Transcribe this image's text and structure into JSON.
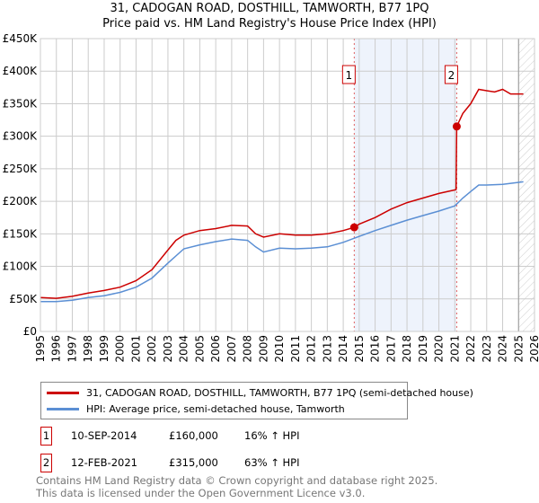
{
  "chart_data": {
    "type": "line",
    "title": "31, CADOGAN ROAD, DOSTHILL, TAMWORTH, B77 1PQ",
    "subtitle": "Price paid vs. HM Land Registry's House Price Index (HPI)",
    "xlim": [
      1995,
      2026
    ],
    "ylim": [
      0,
      450000
    ],
    "x_ticks": [
      "1995",
      "1996",
      "1997",
      "1998",
      "1999",
      "2000",
      "2001",
      "2002",
      "2003",
      "2004",
      "2005",
      "2006",
      "2007",
      "2008",
      "2009",
      "2010",
      "2011",
      "2012",
      "2013",
      "2014",
      "2015",
      "2016",
      "2017",
      "2018",
      "2019",
      "2020",
      "2021",
      "2022",
      "2023",
      "2024",
      "2025",
      "2026"
    ],
    "y_ticks": [
      {
        "v": 0,
        "label": "£0"
      },
      {
        "v": 50000,
        "label": "£50K"
      },
      {
        "v": 100000,
        "label": "£100K"
      },
      {
        "v": 150000,
        "label": "£150K"
      },
      {
        "v": 200000,
        "label": "£200K"
      },
      {
        "v": 250000,
        "label": "£250K"
      },
      {
        "v": 300000,
        "label": "£300K"
      },
      {
        "v": 350000,
        "label": "£350K"
      },
      {
        "v": 400000,
        "label": "£400K"
      },
      {
        "v": 450000,
        "label": "£450K"
      }
    ],
    "grid": true,
    "series": [
      {
        "name": "31, CADOGAN ROAD, DOSTHILL, TAMWORTH, B77 1PQ (semi-detached house)",
        "color": "#cc0000",
        "x": [
          1995,
          1996,
          1997,
          1998,
          1999,
          2000,
          2001,
          2002,
          2003,
          2003.5,
          2004,
          2005,
          2006,
          2007,
          2008,
          2008.5,
          2009,
          2010,
          2011,
          2012,
          2013,
          2014,
          2014.7,
          2015,
          2016,
          2017,
          2018,
          2019,
          2020,
          2021.08,
          2021.12,
          2021.5,
          2022,
          2022.5,
          2023,
          2023.5,
          2024,
          2024.5,
          2025.3
        ],
        "y": [
          52000,
          51000,
          54000,
          59000,
          63000,
          68000,
          78000,
          95000,
          125000,
          140000,
          148000,
          155000,
          158000,
          163000,
          162000,
          150000,
          145000,
          150000,
          148000,
          148000,
          150000,
          155000,
          160000,
          165000,
          175000,
          188000,
          198000,
          205000,
          212000,
          218000,
          315000,
          335000,
          350000,
          372000,
          370000,
          368000,
          372000,
          365000,
          365000
        ]
      },
      {
        "name": "HPI: Average price, semi-detached house, Tamworth",
        "color": "#5b8fd4",
        "x": [
          1995,
          1996,
          1997,
          1998,
          1999,
          2000,
          2001,
          2002,
          2003,
          2004,
          2005,
          2006,
          2007,
          2008,
          2008.5,
          2009,
          2010,
          2011,
          2012,
          2013,
          2014,
          2015,
          2016,
          2017,
          2018,
          2019,
          2020,
          2021,
          2021.5,
          2022,
          2022.5,
          2023,
          2024,
          2025.3
        ],
        "y": [
          46000,
          46000,
          48000,
          52000,
          55000,
          60000,
          68000,
          82000,
          105000,
          127000,
          133000,
          138000,
          142000,
          140000,
          130000,
          122000,
          128000,
          127000,
          128000,
          130000,
          137000,
          146000,
          155000,
          163000,
          171000,
          178000,
          185000,
          193000,
          205000,
          215000,
          225000,
          225000,
          226000,
          230000
        ]
      }
    ],
    "sales": [
      {
        "label": "1",
        "x": 2014.69,
        "y": 160000
      },
      {
        "label": "2",
        "x": 2021.12,
        "y": 315000
      }
    ],
    "shaded_range": [
      2014.69,
      2021.12
    ],
    "forecast_hatch_from": 2025.0
  },
  "legend": {
    "items": [
      "31, CADOGAN ROAD, DOSTHILL, TAMWORTH, B77 1PQ (semi-detached house)",
      "HPI: Average price, semi-detached house, Tamworth"
    ]
  },
  "table": [
    {
      "num": "1",
      "date": "10-SEP-2014",
      "price": "£160,000",
      "hpi": "16% ↑ HPI"
    },
    {
      "num": "2",
      "date": "12-FEB-2021",
      "price": "£315,000",
      "hpi": "63% ↑ HPI"
    }
  ],
  "footer": [
    "Contains HM Land Registry data © Crown copyright and database right 2025.",
    "This data is licensed under the Open Government Licence v3.0."
  ]
}
